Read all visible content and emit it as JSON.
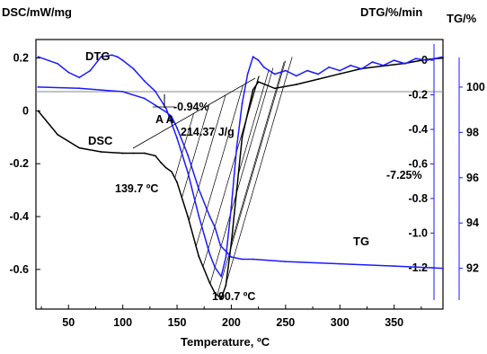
{
  "chart_data": {
    "type": "line",
    "title": "",
    "xlabel": "Temperature, ºC",
    "xlim": [
      20,
      395
    ],
    "x_ticks": [
      "50",
      "100",
      "150",
      "200",
      "250",
      "300",
      "350"
    ],
    "grid": false,
    "legend": "none",
    "axes": {
      "dsc": {
        "label": "DSC/mW/mg",
        "side": "left",
        "range": [
          -0.75,
          0.27
        ],
        "ticks": [
          "0.2",
          "0",
          "-0.2",
          "-0.4",
          "-0.6"
        ]
      },
      "dtg": {
        "label": "DTG/%/min",
        "side": "right",
        "range": [
          -1.44,
          0.12
        ],
        "ticks": [
          "0",
          "-0.2",
          "-0.4",
          "-0.6",
          "-0.8",
          "-1.0",
          "-1.2"
        ],
        "color": "#1a1aff"
      },
      "tg": {
        "label": "TG/%",
        "side": "right",
        "range": [
          90.2,
          102.1
        ],
        "ticks": [
          "100",
          "98",
          "96",
          "94",
          "92"
        ],
        "color": "#1a1aff"
      }
    },
    "series": [
      {
        "name": "DSC",
        "axis": "dsc",
        "color": "#000000",
        "x": [
          22,
          40,
          60,
          80,
          100,
          110,
          120,
          130,
          135,
          139.7,
          145,
          150,
          160,
          170,
          180,
          185,
          190.7,
          195,
          200,
          205,
          210,
          220,
          225,
          240,
          260,
          280,
          300,
          320,
          340,
          360,
          380,
          395
        ],
        "y": [
          0.0,
          -0.09,
          -0.14,
          -0.155,
          -0.16,
          -0.16,
          -0.16,
          -0.17,
          -0.195,
          -0.215,
          -0.23,
          -0.27,
          -0.4,
          -0.55,
          -0.65,
          -0.69,
          -0.71,
          -0.66,
          -0.5,
          -0.3,
          -0.1,
          0.08,
          0.11,
          0.085,
          0.1,
          0.12,
          0.14,
          0.16,
          0.17,
          0.18,
          0.195,
          0.2
        ]
      },
      {
        "name": "DTG",
        "axis": "dtg",
        "color": "#1a1aff",
        "x": [
          22,
          40,
          50,
          60,
          70,
          80,
          90,
          95,
          100,
          110,
          120,
          130,
          140,
          150,
          160,
          170,
          180,
          185,
          190.7,
          195,
          200,
          205,
          210,
          215,
          220,
          225,
          230,
          240,
          250,
          260,
          270,
          280,
          290,
          300,
          310,
          320,
          330,
          340,
          350,
          360,
          370,
          380,
          395
        ],
        "y": [
          0.02,
          -0.02,
          -0.07,
          -0.1,
          -0.06,
          0.02,
          0.03,
          0.02,
          0.0,
          -0.05,
          -0.12,
          -0.18,
          -0.28,
          -0.45,
          -0.65,
          -0.9,
          -1.12,
          -1.2,
          -1.25,
          -1.14,
          -0.85,
          -0.5,
          -0.25,
          -0.08,
          0.02,
          0.0,
          -0.04,
          -0.08,
          -0.06,
          -0.09,
          -0.06,
          -0.08,
          -0.04,
          -0.06,
          -0.03,
          -0.05,
          -0.01,
          -0.03,
          0.0,
          -0.02,
          0.01,
          0.0,
          0.02
        ]
      },
      {
        "name": "TG",
        "axis": "tg",
        "color": "#1a1aff",
        "x": [
          22,
          60,
          100,
          120,
          130,
          140,
          145,
          150,
          160,
          170,
          180,
          185,
          190,
          200,
          210,
          220,
          250,
          300,
          350,
          395
        ],
        "y": [
          100.0,
          99.95,
          99.8,
          99.5,
          99.2,
          98.9,
          98.7,
          98.2,
          97.0,
          95.5,
          94.3,
          93.8,
          93.0,
          92.5,
          92.4,
          92.4,
          92.3,
          92.2,
          92.1,
          92.0
        ]
      }
    ],
    "annotations": {
      "tg_step_1": "-0.94%",
      "tg_step_2": "-7.25%",
      "enthalpy": "214.37 J/g",
      "peak_1": "139.7 ºC",
      "peak_2": "190.7 ºC",
      "marker": "A A"
    }
  }
}
